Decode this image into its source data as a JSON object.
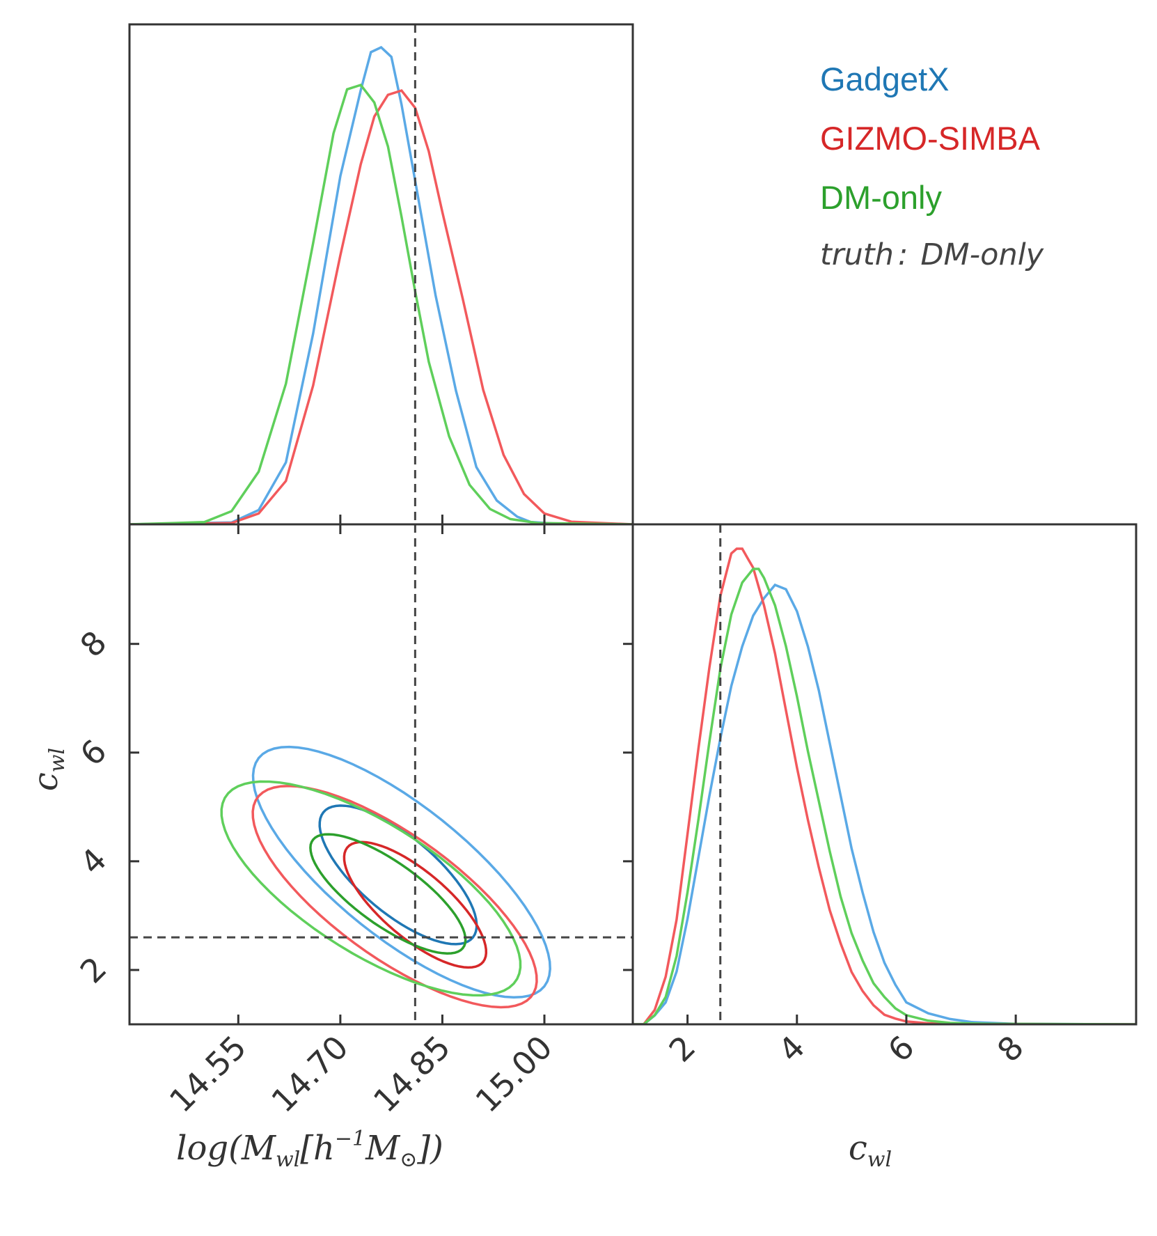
{
  "chart_data": {
    "type": "corner",
    "parameters": [
      {
        "name": "logM",
        "label": "log(M_wl[h^-1 M_sun])",
        "label_parts": {
          "pre": "log(M",
          "sub": "wl",
          "mid": "[h",
          "sup": "−1",
          "post": "M",
          "sun": "⊙",
          "end": "])"
        },
        "range": [
          14.39,
          15.13
        ],
        "ticks": [
          "14.55",
          "14.70",
          "14.85",
          "15.00"
        ],
        "truth": 14.81
      },
      {
        "name": "c",
        "label": "c_wl",
        "label_parts": {
          "pre": "c",
          "sub": "wl"
        },
        "range": [
          1.0,
          10.2
        ],
        "ticks": [
          "2",
          "4",
          "6",
          "8"
        ],
        "truth": 2.6
      }
    ],
    "series": [
      {
        "name": "GadgetX",
        "color": "#1f77b4",
        "line_color": "#5aa9e6",
        "logM_pdf": {
          "x": [
            14.39,
            14.54,
            14.58,
            14.62,
            14.66,
            14.7,
            14.73,
            14.745,
            14.76,
            14.775,
            14.79,
            14.81,
            14.84,
            14.87,
            14.9,
            14.93,
            14.96,
            14.98,
            15.02,
            15.13
          ],
          "y": [
            0,
            0.004,
            0.03,
            0.13,
            0.4,
            0.73,
            0.91,
            0.99,
            1.0,
            0.98,
            0.88,
            0.72,
            0.48,
            0.28,
            0.12,
            0.05,
            0.016,
            0.005,
            0.001,
            0
          ]
        },
        "c_pdf": {
          "x": [
            1.0,
            1.2,
            1.4,
            1.6,
            1.8,
            2.0,
            2.2,
            2.4,
            2.6,
            2.8,
            3.0,
            3.2,
            3.4,
            3.6,
            3.8,
            4.0,
            4.2,
            4.4,
            4.6,
            4.8,
            5.0,
            5.2,
            5.4,
            5.6,
            5.8,
            6.0,
            6.4,
            6.8,
            7.2,
            8.0,
            10.2
          ],
          "y": [
            0,
            0,
            0.02,
            0.05,
            0.12,
            0.24,
            0.38,
            0.52,
            0.65,
            0.77,
            0.86,
            0.93,
            0.97,
            1.0,
            0.99,
            0.94,
            0.86,
            0.76,
            0.64,
            0.52,
            0.4,
            0.3,
            0.21,
            0.14,
            0.09,
            0.05,
            0.025,
            0.012,
            0.005,
            0.001,
            0
          ]
        },
        "contours": [
          {
            "level": "1sigma",
            "center": [
              14.785,
              3.75
            ],
            "major_axis": [
              0.11,
              -1.15
            ],
            "minor_axis": [
              0.035,
              0.55
            ]
          },
          {
            "level": "2sigma",
            "center": [
              14.79,
              3.8
            ],
            "major_axis": [
              0.21,
              -2.1
            ],
            "minor_axis": [
              0.06,
              0.95
            ]
          }
        ]
      },
      {
        "name": "GIZMO-SIMBA",
        "color": "#d62728",
        "line_color": "#f2595c",
        "logM_pdf": {
          "x": [
            14.39,
            14.54,
            14.58,
            14.62,
            14.66,
            14.7,
            14.73,
            14.75,
            14.77,
            14.79,
            14.81,
            14.83,
            14.85,
            14.88,
            14.91,
            14.94,
            14.97,
            15.0,
            15.04,
            15.13
          ],
          "y": [
            0,
            0.003,
            0.025,
            0.1,
            0.32,
            0.62,
            0.83,
            0.94,
            0.99,
            1.0,
            0.96,
            0.86,
            0.72,
            0.52,
            0.31,
            0.16,
            0.07,
            0.025,
            0.006,
            0
          ]
        },
        "c_pdf": {
          "x": [
            1.0,
            1.2,
            1.4,
            1.6,
            1.8,
            2.0,
            2.2,
            2.4,
            2.6,
            2.8,
            2.9,
            3.0,
            3.1,
            3.2,
            3.4,
            3.6,
            3.8,
            4.0,
            4.2,
            4.4,
            4.6,
            4.8,
            5.0,
            5.2,
            5.4,
            5.6,
            5.8,
            6.0,
            6.4,
            7.0,
            10.2
          ],
          "y": [
            0,
            0,
            0.03,
            0.1,
            0.22,
            0.4,
            0.58,
            0.75,
            0.9,
            0.99,
            1.0,
            1.0,
            0.98,
            0.96,
            0.88,
            0.78,
            0.66,
            0.54,
            0.43,
            0.33,
            0.24,
            0.17,
            0.11,
            0.07,
            0.04,
            0.02,
            0.012,
            0.006,
            0.002,
            0.001,
            0
          ]
        },
        "contours": [
          {
            "level": "1sigma",
            "center": [
              14.81,
              3.2
            ],
            "major_axis": [
              0.1,
              -1.05
            ],
            "minor_axis": [
              0.03,
              0.48
            ]
          },
          {
            "level": "2sigma",
            "center": [
              14.78,
              3.35
            ],
            "major_axis": [
              0.2,
              -1.85
            ],
            "minor_axis": [
              0.06,
              0.85
            ]
          }
        ]
      },
      {
        "name": "DM-only",
        "color": "#2ca02c",
        "line_color": "#5fcf5b",
        "logM_pdf": {
          "x": [
            14.39,
            14.5,
            14.54,
            14.58,
            14.62,
            14.66,
            14.69,
            14.71,
            14.73,
            14.75,
            14.77,
            14.79,
            14.81,
            14.83,
            14.86,
            14.89,
            14.92,
            14.95,
            14.99,
            15.13
          ],
          "y": [
            0,
            0.005,
            0.03,
            0.12,
            0.32,
            0.64,
            0.89,
            0.99,
            1.0,
            0.96,
            0.86,
            0.7,
            0.53,
            0.37,
            0.2,
            0.09,
            0.035,
            0.012,
            0.003,
            0
          ]
        },
        "c_pdf": {
          "x": [
            1.0,
            1.2,
            1.4,
            1.6,
            1.8,
            2.0,
            2.2,
            2.4,
            2.6,
            2.8,
            3.0,
            3.2,
            3.3,
            3.4,
            3.6,
            3.8,
            4.0,
            4.2,
            4.4,
            4.6,
            4.8,
            5.0,
            5.2,
            5.4,
            5.6,
            5.8,
            6.0,
            6.4,
            6.8,
            7.5,
            10.2
          ],
          "y": [
            0,
            0,
            0.02,
            0.06,
            0.15,
            0.29,
            0.45,
            0.62,
            0.78,
            0.9,
            0.97,
            1.0,
            1.0,
            0.98,
            0.92,
            0.83,
            0.72,
            0.6,
            0.49,
            0.38,
            0.28,
            0.2,
            0.14,
            0.09,
            0.06,
            0.035,
            0.02,
            0.008,
            0.003,
            0.001,
            0
          ]
        },
        "contours": [
          {
            "level": "1sigma",
            "center": [
              14.77,
              3.4
            ],
            "major_axis": [
              0.11,
              -1.0
            ],
            "minor_axis": [
              0.03,
              0.45
            ]
          },
          {
            "level": "2sigma",
            "center": [
              14.745,
              3.5
            ],
            "major_axis": [
              0.21,
              -1.75
            ],
            "minor_axis": [
              0.065,
              0.9
            ]
          }
        ]
      }
    ],
    "truth_note": {
      "label": "truth",
      "sep": ":",
      "value": "DM-only"
    },
    "legend_position": "top-right"
  }
}
